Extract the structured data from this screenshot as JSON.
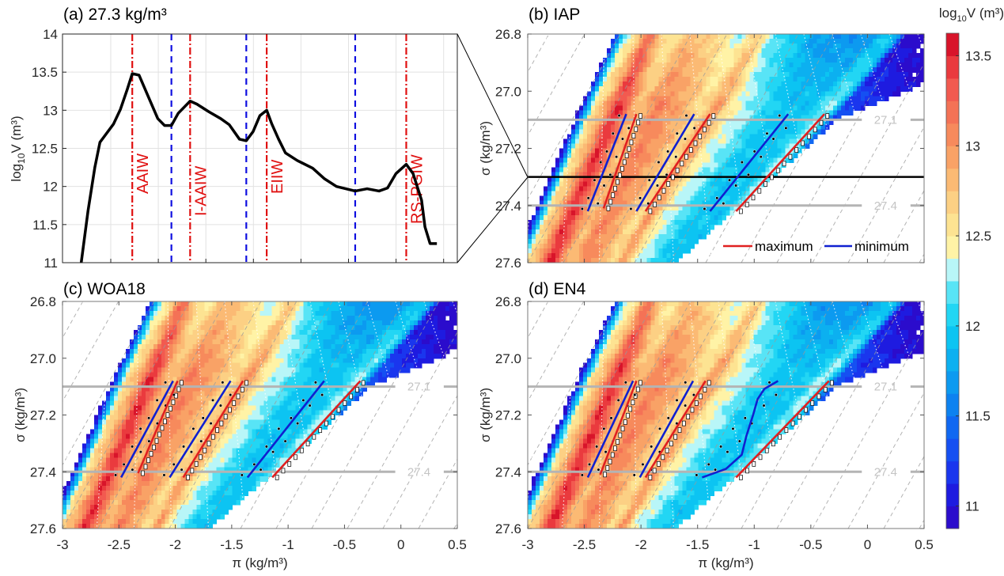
{
  "chart_data": [
    {
      "type": "line",
      "title": "(a) 27.3 kg/m³",
      "ylabel": {
        "pre": "log",
        "sub": "10",
        "post": "V (m³)"
      },
      "xlim": [
        -2.9,
        -0.58
      ],
      "ylim": [
        11,
        14
      ],
      "yticks": [
        "11",
        "11.5",
        "12",
        "12.5",
        "13",
        "13.5",
        "14"
      ],
      "grid": true,
      "series": [
        {
          "color": "#000000",
          "x": [
            -2.79,
            -2.75,
            -2.71,
            -2.68,
            -2.6,
            -2.56,
            -2.52,
            -2.49,
            -2.45,
            -2.4,
            -2.34,
            -2.3,
            -2.26,
            -2.22,
            -2.15,
            -2.11,
            -2.04,
            -1.97,
            -1.92,
            -1.86,
            -1.82,
            -1.78,
            -1.74,
            -1.7,
            -1.67,
            -1.63,
            -1.59,
            -1.52,
            -1.43,
            -1.36,
            -1.29,
            -1.18,
            -1.11,
            -1.04,
            -0.99,
            -0.94,
            -0.88,
            -0.84,
            -0.79,
            -0.77,
            -0.74,
            -0.7
          ],
          "y": [
            11.0,
            11.68,
            12.25,
            12.58,
            12.82,
            13.01,
            13.27,
            13.48,
            13.46,
            13.2,
            12.89,
            12.8,
            12.8,
            12.96,
            13.12,
            13.08,
            12.98,
            12.89,
            12.81,
            12.62,
            12.6,
            12.72,
            12.93,
            13.0,
            12.82,
            12.62,
            12.44,
            12.34,
            12.24,
            12.1,
            12.0,
            11.94,
            11.97,
            11.94,
            11.98,
            12.17,
            12.29,
            12.17,
            11.82,
            11.47,
            11.25,
            11.25
          ]
        }
      ],
      "maxima_color": "#e01010",
      "minima_color": "#1010e0",
      "maxima": [
        {
          "x": -2.49,
          "label": "AAIW"
        },
        {
          "x": -2.15,
          "label": "I-AAIW"
        },
        {
          "x": -1.7,
          "label": "EIIW"
        },
        {
          "x": -0.88,
          "label": "RS-PGIW"
        }
      ],
      "minima": [
        -2.26,
        -1.82,
        -1.18
      ]
    },
    {
      "type": "heatmap",
      "title": "(b) IAP",
      "xlabel": "",
      "ylabel": "σ (kg/m³)",
      "xlim": [
        -3,
        0.5
      ],
      "ylim": [
        26.8,
        27.6
      ],
      "xticks": [
        "-3",
        "-2.5",
        "-2",
        "-1.5",
        "-1",
        "-0.5",
        "0",
        "0.5"
      ],
      "show_xticklabels": false,
      "yticks": [
        "26.8",
        "27.0",
        "27.2",
        "27.4",
        "27.6"
      ],
      "isopycnals": [
        {
          "value": 27.1,
          "label": "27.1"
        },
        {
          "value": 27.4,
          "label": "27.4"
        }
      ],
      "section_line": 27.3,
      "maximum_color": "#e02020",
      "minimum_color": "#1020d0",
      "maximum_lines": [
        [
          [
            -2.33,
            27.41
          ],
          [
            -2.04,
            27.08
          ]
        ],
        [
          [
            -1.96,
            27.42
          ],
          [
            -1.39,
            27.08
          ]
        ],
        [
          [
            -1.16,
            27.42
          ],
          [
            -0.38,
            27.08
          ]
        ]
      ],
      "minimum_lines": [
        [
          [
            -2.47,
            27.42
          ],
          [
            -2.13,
            27.08
          ]
        ],
        [
          [
            -2.04,
            27.42
          ],
          [
            -1.53,
            27.08
          ]
        ],
        [
          [
            -1.39,
            27.42
          ],
          [
            -0.7,
            27.08
          ]
        ]
      ],
      "legend": {
        "placement": "bottom-right",
        "maximum": "maximum",
        "minimum": "minimum"
      }
    },
    {
      "type": "heatmap",
      "title": "(c) WOA18",
      "xlabel": "π (kg/m³)",
      "ylabel": "σ (kg/m³)",
      "xlim": [
        -3,
        0.5
      ],
      "ylim": [
        26.8,
        27.6
      ],
      "xticks": [
        "-3",
        "-2.5",
        "-2",
        "-1.5",
        "-1",
        "-0.5",
        "0",
        "0.5"
      ],
      "show_xticklabels": true,
      "yticks": [
        "26.8",
        "27.0",
        "27.2",
        "27.4",
        "27.6"
      ],
      "isopycnals": [
        {
          "value": 27.1,
          "label": "27.1"
        },
        {
          "value": 27.4,
          "label": "27.4"
        }
      ],
      "maximum_color": "#e02020",
      "minimum_color": "#1020d0",
      "maximum_lines": [
        [
          [
            -2.33,
            27.405
          ],
          [
            -1.98,
            27.08
          ]
        ],
        [
          [
            -1.93,
            27.42
          ],
          [
            -1.4,
            27.08
          ]
        ],
        [
          [
            -1.14,
            27.42
          ],
          [
            -0.36,
            27.08
          ]
        ]
      ],
      "minimum_lines": [
        [
          [
            -2.48,
            27.42
          ],
          [
            -2.02,
            27.08
          ]
        ],
        [
          [
            -2.05,
            27.42
          ],
          [
            -1.51,
            27.08
          ]
        ],
        [
          [
            -1.36,
            27.42
          ],
          [
            -0.68,
            27.08
          ]
        ]
      ]
    },
    {
      "type": "heatmap",
      "title": "(d) EN4",
      "xlabel": "π (kg/m³)",
      "ylabel": "σ (kg/m³)",
      "xlim": [
        -3,
        0.5
      ],
      "ylim": [
        26.8,
        27.6
      ],
      "xticks": [
        "-3",
        "-2.5",
        "-2",
        "-1.5",
        "-1",
        "-0.5",
        "0",
        "0.5"
      ],
      "show_xticklabels": true,
      "yticks": [
        "26.8",
        "27.0",
        "27.2",
        "27.4",
        "27.6"
      ],
      "isopycnals": [
        {
          "value": 27.1,
          "label": "27.1"
        },
        {
          "value": 27.4,
          "label": "27.4"
        }
      ],
      "maximum_color": "#e02020",
      "minimum_color": "#1020d0",
      "maximum_lines": [
        [
          [
            -2.36,
            27.41
          ],
          [
            -2.04,
            27.08
          ]
        ],
        [
          [
            -1.96,
            27.42
          ],
          [
            -1.43,
            27.08
          ]
        ],
        [
          [
            -1.16,
            27.42
          ],
          [
            -0.34,
            27.08
          ]
        ]
      ],
      "minimum_lines": [
        [
          [
            -2.47,
            27.42
          ],
          [
            -2.07,
            27.08
          ]
        ],
        [
          [
            -2.01,
            27.42
          ],
          [
            -1.54,
            27.08
          ]
        ],
        [
          [
            -1.46,
            27.42
          ],
          [
            -1.25,
            27.39
          ],
          [
            -1.11,
            27.34
          ],
          [
            -1.07,
            27.275
          ],
          [
            -1.01,
            27.2
          ],
          [
            -0.97,
            27.144
          ],
          [
            -0.91,
            27.108
          ],
          [
            -0.79,
            27.08
          ]
        ]
      ]
    }
  ],
  "colorbar": {
    "title": {
      "pre": "log",
      "sub": "10",
      "post": "V (m³)"
    },
    "range": [
      10.875,
      13.625
    ],
    "ticks": [
      "11",
      "11.5",
      "12",
      "12.5",
      "13",
      "13.5"
    ],
    "colors": [
      "#2b0ccc",
      "#1e1be0",
      "#1a36ee",
      "#1550f2",
      "#1068f2",
      "#0d82f0",
      "#0c9af0",
      "#0cb0f0",
      "#0cc4f2",
      "#22d6f4",
      "#58e4f6",
      "#b8f6f8",
      "#fff3a6",
      "#fde392",
      "#fcd084",
      "#fbba74",
      "#f9a266",
      "#f78a5c",
      "#f47256",
      "#f25a50",
      "#ea3a3e",
      "#d8142a"
    ]
  }
}
